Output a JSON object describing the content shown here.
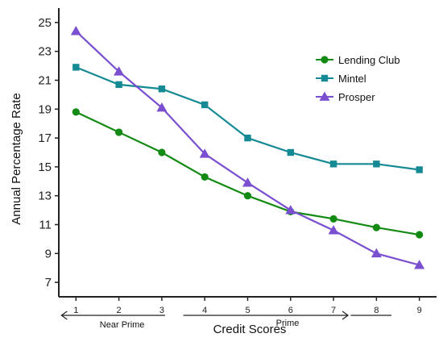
{
  "chart_data": {
    "type": "line",
    "title": "",
    "xlabel": "Credit Scores",
    "ylabel": "Annual Percentage Rate",
    "categories": [
      "1",
      "2",
      "3",
      "4",
      "5",
      "6",
      "7",
      "8",
      "9"
    ],
    "x": [
      1,
      2,
      3,
      4,
      5,
      6,
      7,
      8,
      9
    ],
    "yticks": [
      "7",
      "9",
      "11",
      "13",
      "15",
      "17",
      "19",
      "21",
      "23",
      "25"
    ],
    "ylim": [
      6,
      26
    ],
    "xlim": [
      0.6,
      9.4
    ],
    "grid": false,
    "legend_position": "top-right",
    "series": [
      {
        "name": "Lending Club",
        "color": "#138a13",
        "marker": "circle",
        "values": [
          18.8,
          17.4,
          16.0,
          14.3,
          13.0,
          11.9,
          11.4,
          10.8,
          10.3
        ]
      },
      {
        "name": "Mintel",
        "color": "#168a94",
        "marker": "square",
        "values": [
          21.9,
          20.7,
          20.4,
          19.3,
          17.0,
          16.0,
          15.2,
          15.2,
          14.8
        ]
      },
      {
        "name": "Prosper",
        "color": "#7a4fd0",
        "marker": "triangle",
        "values": [
          24.4,
          21.6,
          19.1,
          15.9,
          13.9,
          12.0,
          10.6,
          9.0,
          8.2
        ]
      }
    ],
    "annotations": [
      {
        "text": "Near Prime",
        "from": 1,
        "to": 3
      },
      {
        "text": "Prime",
        "from": 3.5,
        "to": 7
      }
    ]
  }
}
